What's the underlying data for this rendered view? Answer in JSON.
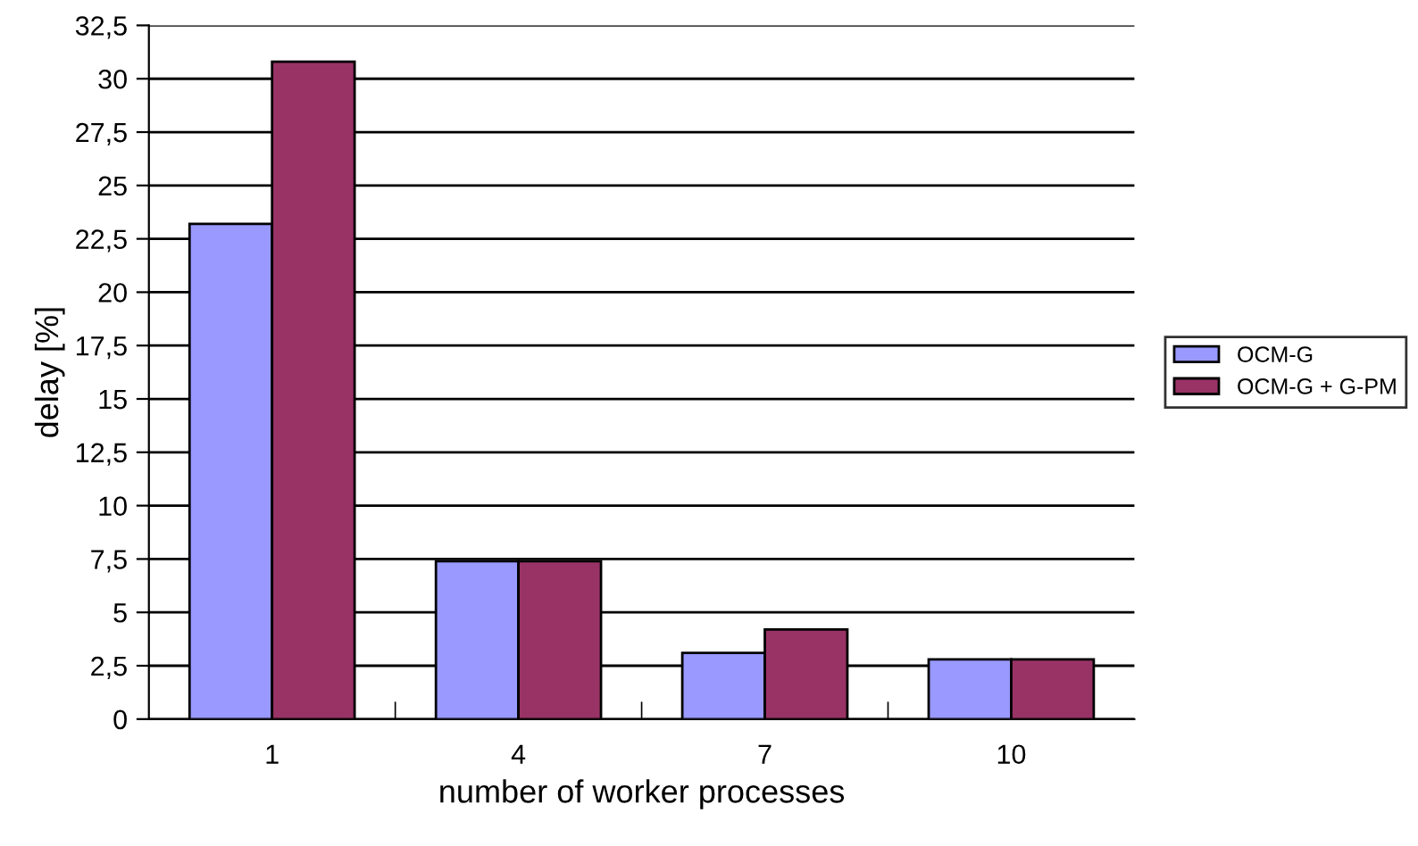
{
  "chart_data": {
    "type": "bar",
    "xlabel": "number of worker processes",
    "ylabel": "delay [%]",
    "categories": [
      "1",
      "4",
      "7",
      "10"
    ],
    "series": [
      {
        "name": "OCM-G",
        "color": "#9999ff",
        "values": [
          23.2,
          7.4,
          3.1,
          2.8
        ]
      },
      {
        "name": "OCM-G + G-PM",
        "color": "#993366",
        "values": [
          30.8,
          7.4,
          4.2,
          2.8
        ]
      }
    ],
    "ylim": [
      0,
      32.5
    ],
    "yticks": [
      0,
      {
        "value": 2.5,
        "label": "2,5"
      },
      5,
      {
        "value": 7.5,
        "label": "7,5"
      },
      10,
      {
        "value": 12.5,
        "label": "12,5"
      },
      15,
      {
        "value": 17.5,
        "label": "17,5"
      },
      20,
      {
        "value": 22.5,
        "label": "22,5"
      },
      25,
      {
        "value": 27.5,
        "label": "27,5"
      },
      30,
      {
        "value": 32.5,
        "label": "32,5"
      }
    ],
    "grid": "y",
    "legend": "right"
  }
}
